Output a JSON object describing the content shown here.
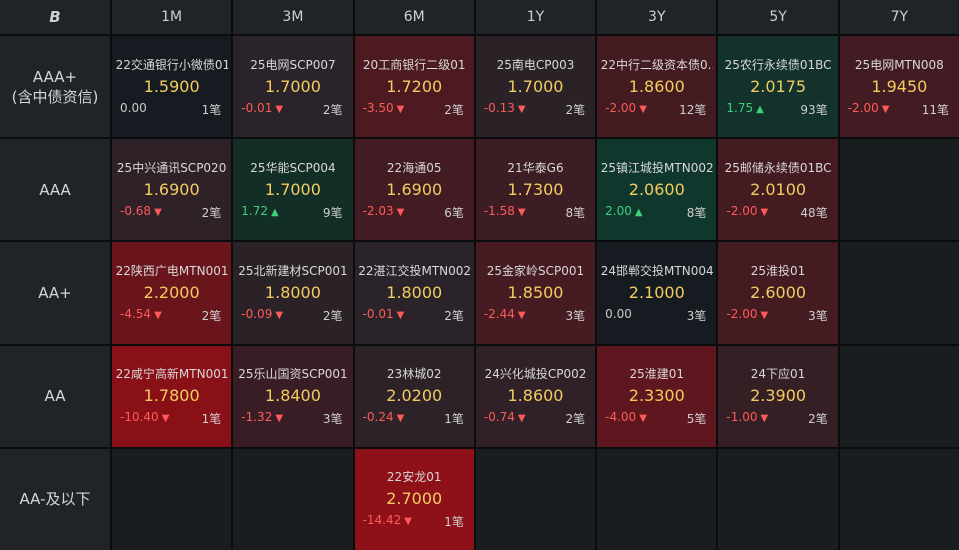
{
  "logo": "B",
  "columns": [
    "1M",
    "3M",
    "6M",
    "1Y",
    "3Y",
    "5Y",
    "7Y"
  ],
  "rows": [
    {
      "label_lines": [
        "AAA+",
        "(含中债资信)"
      ],
      "cells": [
        {
          "name": "22交通银行小微债01",
          "price": "1.5900",
          "change": "0.00",
          "dir": "flat",
          "count": "1笔",
          "bg": "#151b20"
        },
        {
          "name": "25电网SCP007",
          "price": "1.7000",
          "change": "-0.01",
          "dir": "down",
          "count": "2笔",
          "bg": "#2a2329"
        },
        {
          "name": "20工商银行二级01",
          "price": "1.7200",
          "change": "-3.50",
          "dir": "down",
          "count": "2笔",
          "bg": "#4c1a20"
        },
        {
          "name": "25南电CP003",
          "price": "1.7000",
          "change": "-0.13",
          "dir": "down",
          "count": "2笔",
          "bg": "#2b2227"
        },
        {
          "name": "22中行二级资本债0...",
          "price": "1.8600",
          "change": "-2.00",
          "dir": "down",
          "count": "12笔",
          "bg": "#431b21"
        },
        {
          "name": "25农行永续债01BC",
          "price": "2.0175",
          "change": "1.75",
          "dir": "up",
          "count": "93笔",
          "bg": "#13322b"
        },
        {
          "name": "25电网MTN008",
          "price": "1.9450",
          "change": "-2.00",
          "dir": "down",
          "count": "11笔",
          "bg": "#421c22"
        }
      ]
    },
    {
      "label_lines": [
        "AAA"
      ],
      "cells": [
        {
          "name": "25中兴通讯SCP020",
          "price": "1.6900",
          "change": "-0.68",
          "dir": "down",
          "count": "2笔",
          "bg": "#2e2128"
        },
        {
          "name": "25华能SCP004",
          "price": "1.7000",
          "change": "1.72",
          "dir": "up",
          "count": "9笔",
          "bg": "#132d27"
        },
        {
          "name": "22海通05",
          "price": "1.6900",
          "change": "-2.03",
          "dir": "down",
          "count": "6笔",
          "bg": "#421c22"
        },
        {
          "name": "21华泰G6",
          "price": "1.7300",
          "change": "-1.58",
          "dir": "down",
          "count": "8笔",
          "bg": "#3c1d24"
        },
        {
          "name": "25镇江城投MTN002",
          "price": "2.0600",
          "change": "2.00",
          "dir": "up",
          "count": "8笔",
          "bg": "#10372d"
        },
        {
          "name": "25邮储永续债01BC",
          "price": "2.0100",
          "change": "-2.00",
          "dir": "down",
          "count": "48笔",
          "bg": "#431b21"
        },
        null
      ]
    },
    {
      "label_lines": [
        "AA+"
      ],
      "cells": [
        {
          "name": "22陕西广电MTN001",
          "price": "2.2000",
          "change": "-4.54",
          "dir": "down",
          "count": "2笔",
          "bg": "#6a151c"
        },
        {
          "name": "25北新建材SCP001",
          "price": "1.8000",
          "change": "-0.09",
          "dir": "down",
          "count": "2笔",
          "bg": "#2b2228"
        },
        {
          "name": "22湛江交投MTN002",
          "price": "1.8000",
          "change": "-0.01",
          "dir": "down",
          "count": "2笔",
          "bg": "#2a2329"
        },
        {
          "name": "25金家岭SCP001",
          "price": "1.8500",
          "change": "-2.44",
          "dir": "down",
          "count": "3笔",
          "bg": "#461b21"
        },
        {
          "name": "24邯郸交投MTN004",
          "price": "2.1000",
          "change": "0.00",
          "dir": "flat",
          "count": "3笔",
          "bg": "#151b20"
        },
        {
          "name": "25淮投01",
          "price": "2.6000",
          "change": "-2.00",
          "dir": "down",
          "count": "3笔",
          "bg": "#431b21"
        },
        null
      ]
    },
    {
      "label_lines": [
        "AA"
      ],
      "cells": [
        {
          "name": "22咸宁高新MTN001",
          "price": "1.7800",
          "change": "-10.40",
          "dir": "down",
          "count": "1笔",
          "bg": "#8a1018"
        },
        {
          "name": "25乐山国资SCP001",
          "price": "1.8400",
          "change": "-1.32",
          "dir": "down",
          "count": "3笔",
          "bg": "#381e24"
        },
        {
          "name": "23林城02",
          "price": "2.0200",
          "change": "-0.24",
          "dir": "down",
          "count": "1笔",
          "bg": "#2c2228"
        },
        {
          "name": "24兴化城投CP002",
          "price": "1.8600",
          "change": "-0.74",
          "dir": "down",
          "count": "2笔",
          "bg": "#2f2127"
        },
        {
          "name": "25淮建01",
          "price": "2.3300",
          "change": "-4.00",
          "dir": "down",
          "count": "5笔",
          "bg": "#5e171e"
        },
        {
          "name": "24下应01",
          "price": "2.3900",
          "change": "-1.00",
          "dir": "down",
          "count": "2笔",
          "bg": "#341f25"
        },
        null
      ]
    },
    {
      "label_lines": [
        "AA-及以下"
      ],
      "cells": [
        null,
        null,
        {
          "name": "22安龙01",
          "price": "2.7000",
          "change": "-14.42",
          "dir": "down",
          "count": "1笔",
          "bg": "#8e1119"
        },
        null,
        null,
        null,
        null
      ]
    }
  ],
  "arrows": {
    "down": "▼",
    "up": "▲",
    "flat": ""
  }
}
